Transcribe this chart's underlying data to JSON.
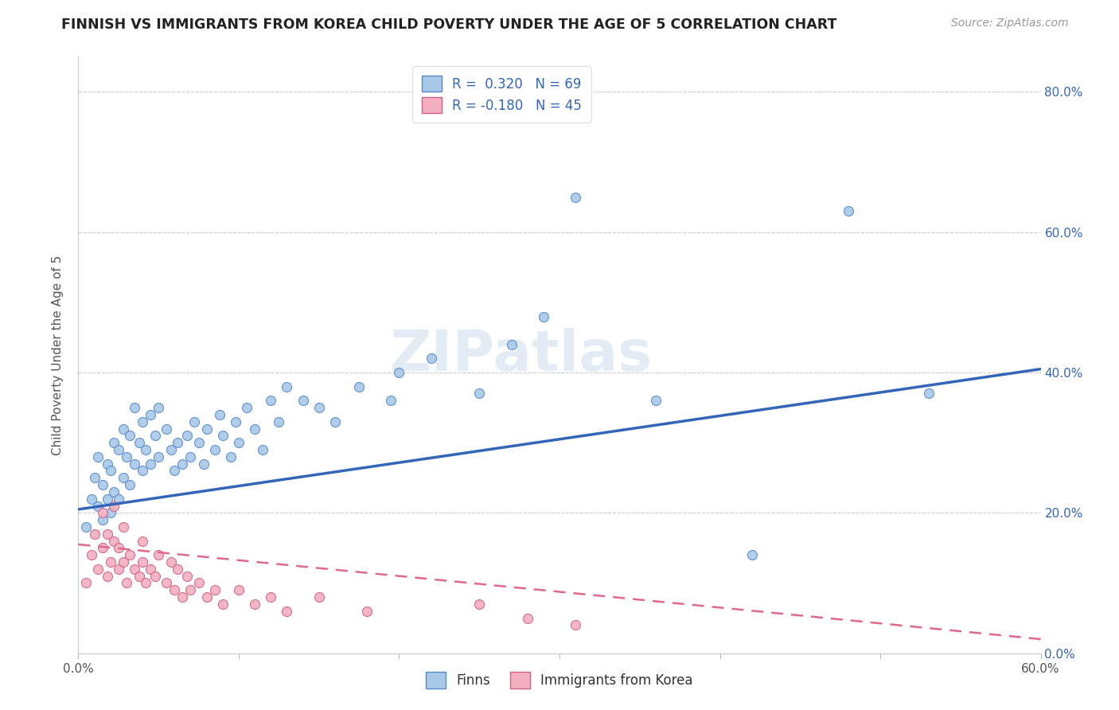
{
  "title": "FINNISH VS IMMIGRANTS FROM KOREA CHILD POVERTY UNDER THE AGE OF 5 CORRELATION CHART",
  "source": "Source: ZipAtlas.com",
  "ylabel": "Child Poverty Under the Age of 5",
  "xlim": [
    0.0,
    0.6
  ],
  "ylim": [
    0.0,
    0.85
  ],
  "yticks": [
    0.0,
    0.2,
    0.4,
    0.6,
    0.8
  ],
  "xtick_labels_only_ends": true,
  "finn_R": 0.32,
  "finn_N": 69,
  "korea_R": -0.18,
  "korea_N": 45,
  "finn_color": "#a8c8e8",
  "korea_color": "#f4b0c0",
  "finn_edge_color": "#5588cc",
  "korea_edge_color": "#d06080",
  "finn_line_color": "#3366bb",
  "korea_line_color": "#e06888",
  "watermark_text": "ZIPatlas",
  "finn_scatter_x": [
    0.005,
    0.008,
    0.01,
    0.012,
    0.012,
    0.015,
    0.015,
    0.018,
    0.018,
    0.02,
    0.02,
    0.022,
    0.022,
    0.025,
    0.025,
    0.028,
    0.028,
    0.03,
    0.032,
    0.032,
    0.035,
    0.035,
    0.038,
    0.04,
    0.04,
    0.042,
    0.045,
    0.045,
    0.048,
    0.05,
    0.05,
    0.055,
    0.058,
    0.06,
    0.062,
    0.065,
    0.068,
    0.07,
    0.072,
    0.075,
    0.078,
    0.08,
    0.085,
    0.088,
    0.09,
    0.095,
    0.098,
    0.1,
    0.105,
    0.11,
    0.115,
    0.12,
    0.125,
    0.13,
    0.14,
    0.15,
    0.16,
    0.175,
    0.195,
    0.2,
    0.22,
    0.25,
    0.27,
    0.29,
    0.31,
    0.36,
    0.42,
    0.48,
    0.53
  ],
  "finn_scatter_y": [
    0.18,
    0.22,
    0.25,
    0.21,
    0.28,
    0.19,
    0.24,
    0.22,
    0.27,
    0.2,
    0.26,
    0.23,
    0.3,
    0.22,
    0.29,
    0.25,
    0.32,
    0.28,
    0.24,
    0.31,
    0.27,
    0.35,
    0.3,
    0.26,
    0.33,
    0.29,
    0.27,
    0.34,
    0.31,
    0.28,
    0.35,
    0.32,
    0.29,
    0.26,
    0.3,
    0.27,
    0.31,
    0.28,
    0.33,
    0.3,
    0.27,
    0.32,
    0.29,
    0.34,
    0.31,
    0.28,
    0.33,
    0.3,
    0.35,
    0.32,
    0.29,
    0.36,
    0.33,
    0.38,
    0.36,
    0.35,
    0.33,
    0.38,
    0.36,
    0.4,
    0.42,
    0.37,
    0.44,
    0.48,
    0.65,
    0.36,
    0.14,
    0.63,
    0.37
  ],
  "korea_scatter_x": [
    0.005,
    0.008,
    0.01,
    0.012,
    0.015,
    0.015,
    0.018,
    0.018,
    0.02,
    0.022,
    0.022,
    0.025,
    0.025,
    0.028,
    0.028,
    0.03,
    0.032,
    0.035,
    0.038,
    0.04,
    0.04,
    0.042,
    0.045,
    0.048,
    0.05,
    0.055,
    0.058,
    0.06,
    0.062,
    0.065,
    0.068,
    0.07,
    0.075,
    0.08,
    0.085,
    0.09,
    0.1,
    0.11,
    0.12,
    0.13,
    0.15,
    0.18,
    0.25,
    0.28,
    0.31
  ],
  "korea_scatter_y": [
    0.1,
    0.14,
    0.17,
    0.12,
    0.15,
    0.2,
    0.11,
    0.17,
    0.13,
    0.16,
    0.21,
    0.12,
    0.15,
    0.13,
    0.18,
    0.1,
    0.14,
    0.12,
    0.11,
    0.13,
    0.16,
    0.1,
    0.12,
    0.11,
    0.14,
    0.1,
    0.13,
    0.09,
    0.12,
    0.08,
    0.11,
    0.09,
    0.1,
    0.08,
    0.09,
    0.07,
    0.09,
    0.07,
    0.08,
    0.06,
    0.08,
    0.06,
    0.07,
    0.05,
    0.04
  ],
  "finn_line_x0": 0.0,
  "finn_line_y0": 0.205,
  "finn_line_x1": 0.6,
  "finn_line_y1": 0.405,
  "korea_line_x0": 0.0,
  "korea_line_y0": 0.155,
  "korea_line_x1": 0.6,
  "korea_line_y1": 0.02
}
